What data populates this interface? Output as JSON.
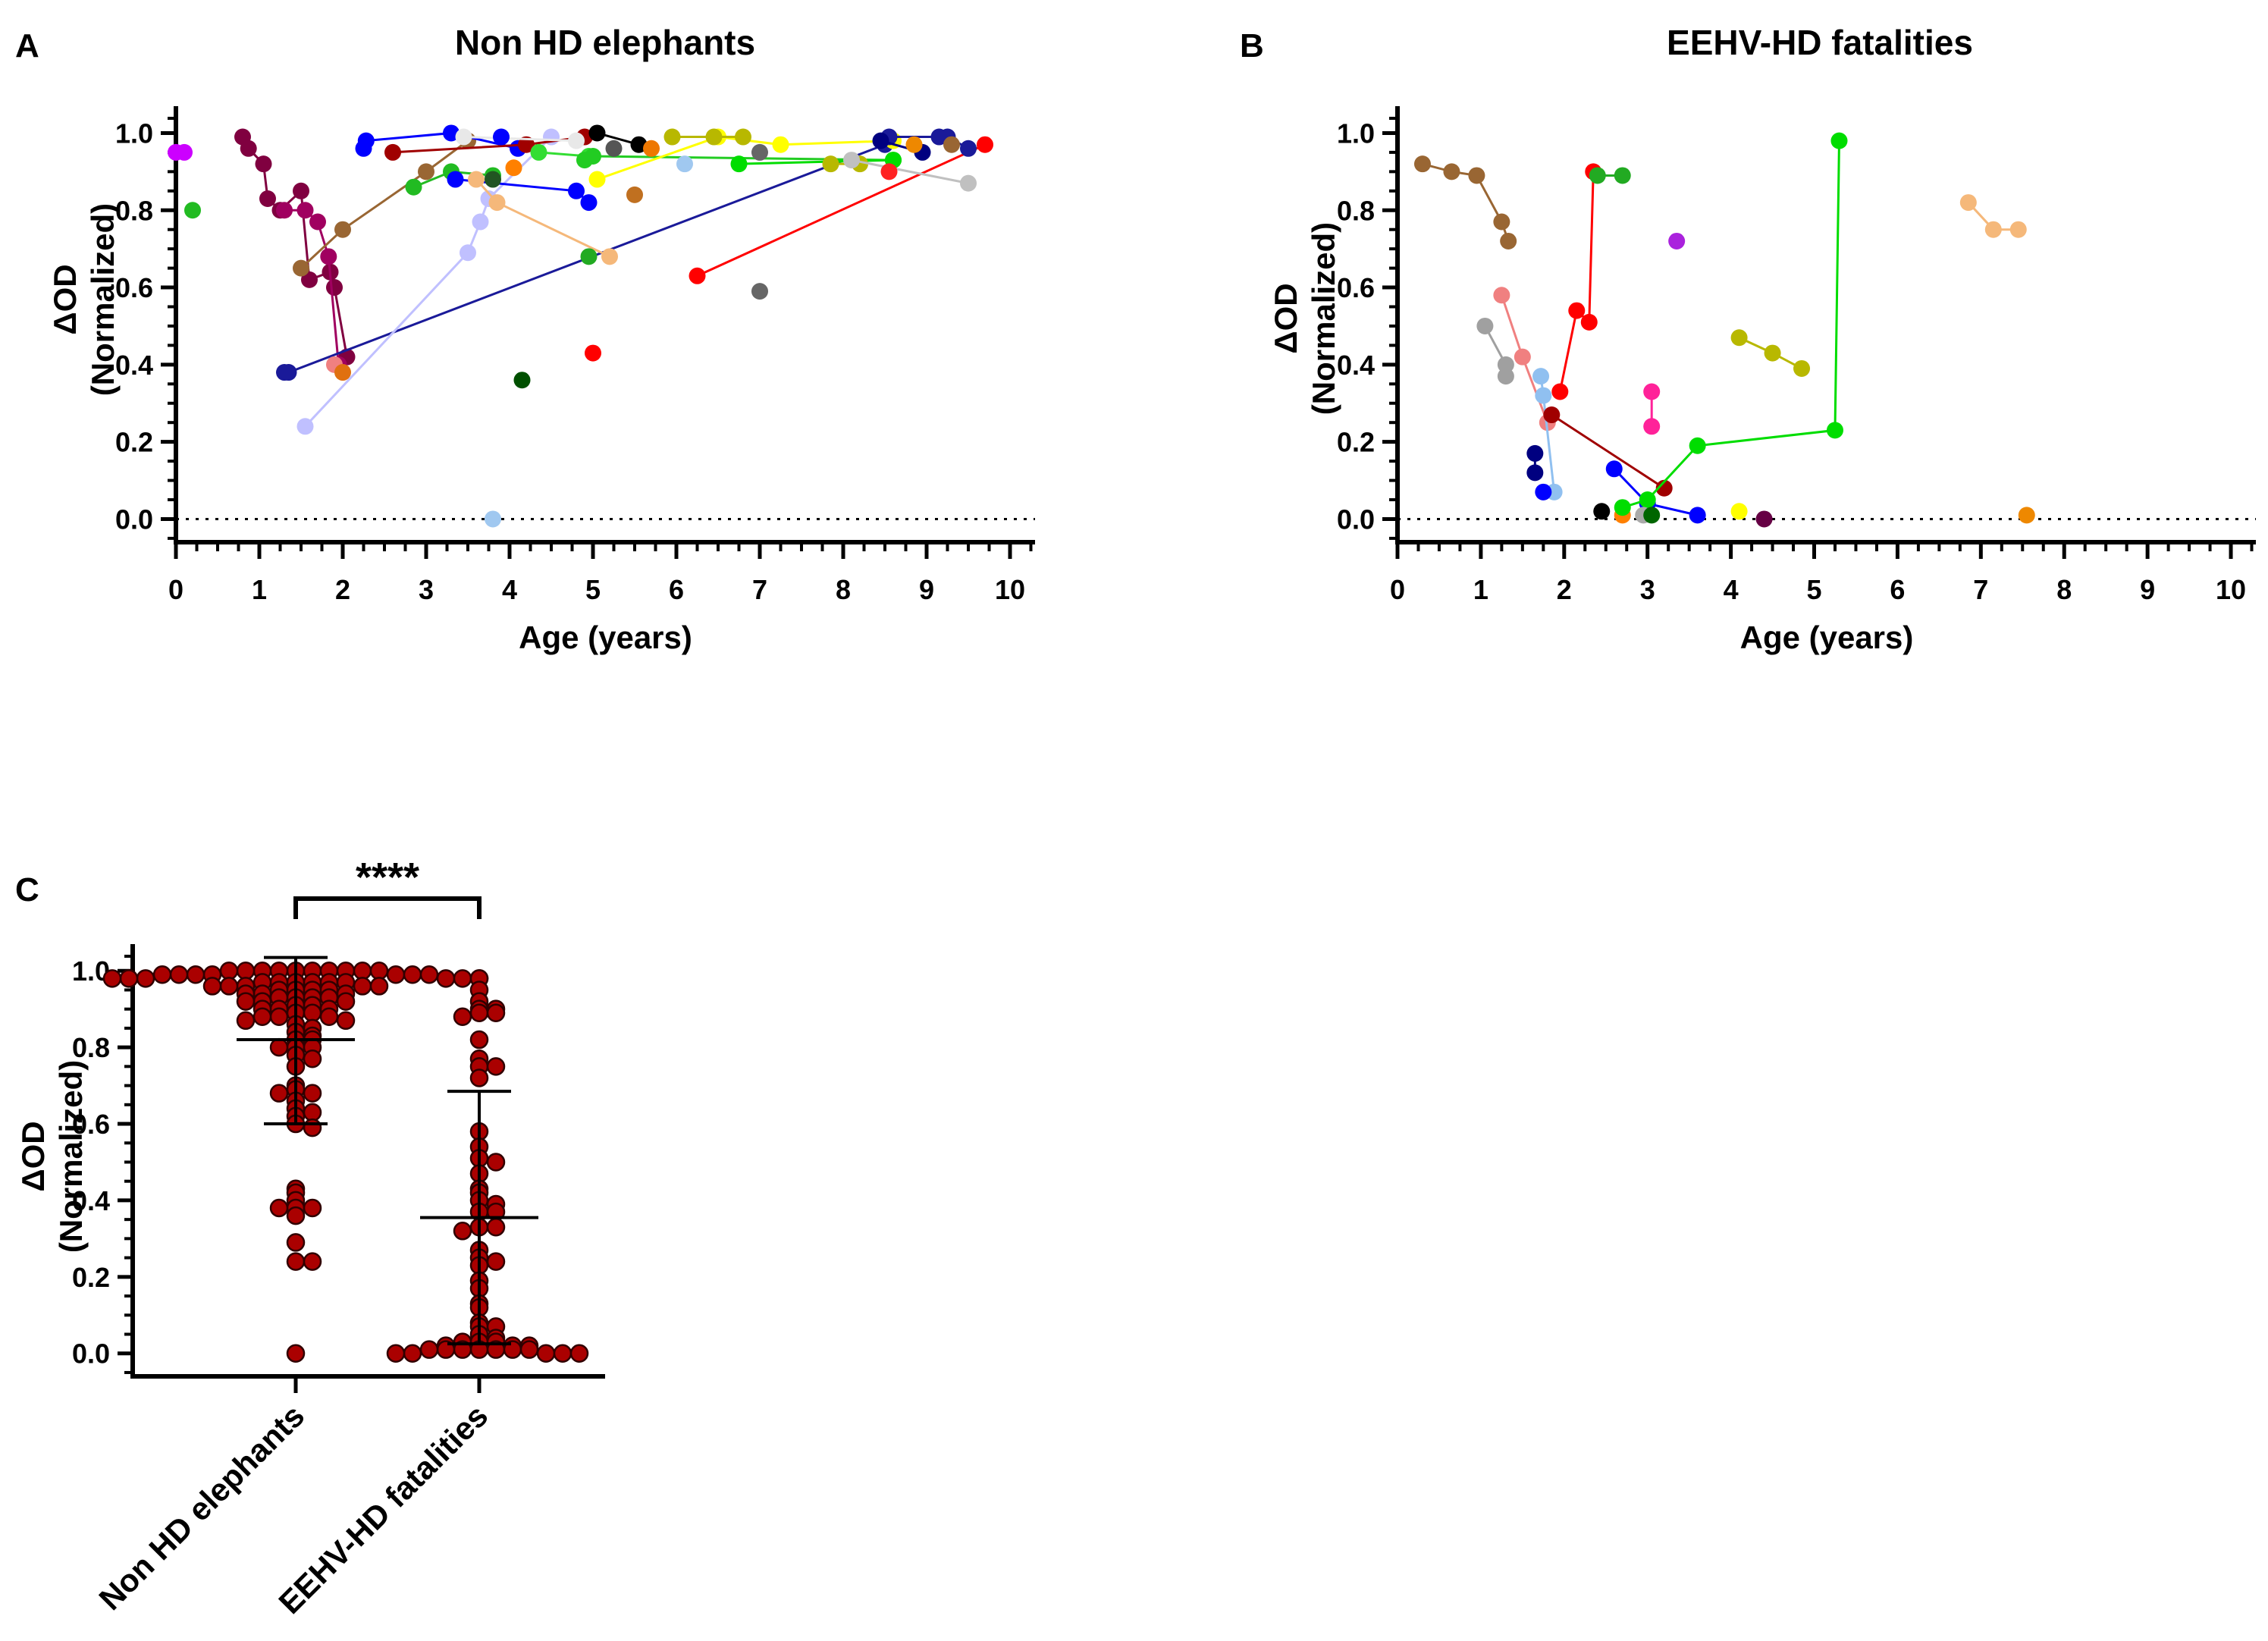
{
  "chart_data": [
    {
      "panel": "A",
      "type": "scatter",
      "title": "Non HD elephants",
      "xlabel": "Age (years)",
      "ylabel_line1": "ΔOD",
      "ylabel_line2": "(Normalized)",
      "xlim": [
        0,
        10.3
      ],
      "ylim": [
        -0.06,
        1.05
      ],
      "xticks": [
        0,
        1,
        2,
        3,
        4,
        5,
        6,
        7,
        8,
        9,
        10
      ],
      "xtick_labels": [
        "0",
        "1",
        "2",
        "3",
        "4",
        "5",
        "6",
        "7",
        "8",
        "9",
        "10"
      ],
      "yticks": [
        0.0,
        0.2,
        0.4,
        0.6,
        0.8,
        1.0
      ],
      "ytick_labels": [
        "0.0",
        "0.2",
        "0.4",
        "0.6",
        "0.8",
        "1.0"
      ],
      "reference_line": 0,
      "series": [
        {
          "color": "#cc00ff",
          "x": [
            0.0,
            0.1
          ],
          "y": [
            0.95,
            0.95
          ],
          "connected": true
        },
        {
          "color": "#22bb22",
          "x": [
            0.2
          ],
          "y": [
            0.8
          ],
          "connected": false
        },
        {
          "color": "#800040",
          "x": [
            0.8,
            0.87,
            1.05,
            1.1,
            1.25,
            1.5,
            1.6,
            1.85,
            1.9,
            2.05
          ],
          "y": [
            0.99,
            0.96,
            0.92,
            0.83,
            0.8,
            0.85,
            0.62,
            0.64,
            0.6,
            0.42
          ],
          "connected": true
        },
        {
          "color": "#a00060",
          "x": [
            1.3,
            1.55,
            1.7,
            1.83,
            1.95
          ],
          "y": [
            0.8,
            0.8,
            0.77,
            0.68,
            0.4
          ],
          "connected": true
        },
        {
          "color": "#996633",
          "x": [
            1.5,
            2.0,
            3.0,
            3.5
          ],
          "y": [
            0.65,
            0.75,
            0.9,
            0.98
          ],
          "connected": true
        },
        {
          "color": "#1a1a99",
          "x": [
            1.3,
            1.35,
            8.5
          ],
          "y": [
            0.38,
            0.38,
            0.97
          ],
          "connected": true
        },
        {
          "color": "#c0c0ff",
          "x": [
            1.55,
            3.5,
            3.65,
            3.75,
            4.5
          ],
          "y": [
            0.24,
            0.69,
            0.77,
            0.83,
            0.99
          ],
          "connected": true
        },
        {
          "color": "#f08080",
          "x": [
            1.9
          ],
          "y": [
            0.4
          ],
          "connected": false
        },
        {
          "color": "#e07010",
          "x": [
            2.0
          ],
          "y": [
            0.38
          ],
          "connected": false
        },
        {
          "color": "#0000ff",
          "x": [
            2.25,
            2.28,
            3.3,
            4.1
          ],
          "y": [
            0.96,
            0.98,
            1.0,
            0.96
          ],
          "connected": true
        },
        {
          "color": "#a00000",
          "x": [
            2.6,
            4.2,
            4.9
          ],
          "y": [
            0.95,
            0.97,
            0.99
          ],
          "connected": true
        },
        {
          "color": "#22bb22",
          "x": [
            2.85,
            3.3,
            3.8
          ],
          "y": [
            0.86,
            0.9,
            0.89
          ],
          "connected": true
        },
        {
          "color": "#0000ff",
          "x": [
            3.35,
            4.8,
            4.95
          ],
          "y": [
            0.88,
            0.85,
            0.82
          ],
          "connected": true
        },
        {
          "color": "#e8e8e8",
          "x": [
            3.45,
            4.8
          ],
          "y": [
            0.99,
            0.98
          ],
          "connected": true
        },
        {
          "color": "#f5b87a",
          "x": [
            3.6,
            3.85,
            5.2
          ],
          "y": [
            0.88,
            0.82,
            0.68
          ],
          "connected": true
        },
        {
          "color": "#225522",
          "x": [
            3.8
          ],
          "y": [
            0.88
          ],
          "connected": false
        },
        {
          "color": "#0000ff",
          "x": [
            3.9
          ],
          "y": [
            0.99
          ],
          "connected": false
        },
        {
          "color": "#ff8000",
          "x": [
            4.05
          ],
          "y": [
            0.91
          ],
          "connected": false
        },
        {
          "color": "#005000",
          "x": [
            4.15
          ],
          "y": [
            0.36
          ],
          "connected": false
        },
        {
          "color": "#33dd33",
          "x": [
            4.35,
            4.95
          ],
          "y": [
            0.95,
            0.94
          ],
          "connected": true
        },
        {
          "color": "#000000",
          "x": [
            5.05,
            5.55
          ],
          "y": [
            1.0,
            0.97
          ],
          "connected": true
        },
        {
          "color": "#22cc22",
          "x": [
            4.9,
            5.0,
            8.6
          ],
          "y": [
            0.93,
            0.94,
            0.93
          ],
          "connected": true
        },
        {
          "color": "#22aa22",
          "x": [
            4.95
          ],
          "y": [
            0.68
          ],
          "connected": false
        },
        {
          "color": "#ff0000",
          "x": [
            5.0
          ],
          "y": [
            0.43
          ],
          "connected": false
        },
        {
          "color": "#ffff00",
          "x": [
            5.05,
            6.5,
            7.25,
            8.6
          ],
          "y": [
            0.88,
            0.99,
            0.97,
            0.98
          ],
          "connected": true
        },
        {
          "color": "#555555",
          "x": [
            5.25
          ],
          "y": [
            0.96
          ],
          "connected": false
        },
        {
          "color": "#c07020",
          "x": [
            5.5
          ],
          "y": [
            0.84
          ],
          "connected": false
        },
        {
          "color": "#ee7700",
          "x": [
            5.7
          ],
          "y": [
            0.96
          ],
          "connected": false
        },
        {
          "color": "#b8b800",
          "x": [
            5.95,
            6.45,
            6.8
          ],
          "y": [
            0.99,
            0.99,
            0.99
          ],
          "connected": true
        },
        {
          "color": "#a0c8f0",
          "x": [
            6.1
          ],
          "y": [
            0.92
          ],
          "connected": false
        },
        {
          "color": "#00dd00",
          "x": [
            6.75,
            8.6
          ],
          "y": [
            0.92,
            0.93
          ],
          "connected": true
        },
        {
          "color": "#666666",
          "x": [
            7.0
          ],
          "y": [
            0.95
          ],
          "connected": false
        },
        {
          "color": "#666666",
          "x": [
            7.0
          ],
          "y": [
            0.59
          ],
          "connected": false
        },
        {
          "color": "#ff0000",
          "x": [
            6.25,
            9.7
          ],
          "y": [
            0.63,
            0.97
          ],
          "connected": true
        },
        {
          "color": "#b8b800",
          "x": [
            7.85,
            8.2
          ],
          "y": [
            0.92,
            0.92
          ],
          "connected": true
        },
        {
          "color": "#c0c0c0",
          "x": [
            8.1,
            9.5
          ],
          "y": [
            0.93,
            0.87
          ],
          "connected": true
        },
        {
          "color": "#1a1a99",
          "x": [
            8.55,
            9.15,
            9.25,
            9.5
          ],
          "y": [
            0.99,
            0.99,
            0.99,
            0.96
          ],
          "connected": true
        },
        {
          "color": "#000080",
          "x": [
            8.45,
            8.95
          ],
          "y": [
            0.98,
            0.95
          ],
          "connected": true
        },
        {
          "color": "#ff2222",
          "x": [
            8.55
          ],
          "y": [
            0.9
          ],
          "connected": false
        },
        {
          "color": "#ee8800",
          "x": [
            8.85
          ],
          "y": [
            0.97
          ],
          "connected": false
        },
        {
          "color": "#996633",
          "x": [
            9.3
          ],
          "y": [
            0.97
          ],
          "connected": false
        },
        {
          "color": "#a0c8f0",
          "x": [
            3.8
          ],
          "y": [
            0.0
          ],
          "connected": false
        }
      ]
    },
    {
      "panel": "B",
      "type": "scatter",
      "title": "EEHV-HD fatalities",
      "xlabel": "Age (years)",
      "ylabel_line1": "ΔOD",
      "ylabel_line2": "(Normalized)",
      "xlim": [
        0,
        10.3
      ],
      "ylim": [
        -0.06,
        1.05
      ],
      "xticks": [
        0,
        1,
        2,
        3,
        4,
        5,
        6,
        7,
        8,
        9,
        10
      ],
      "xtick_labels": [
        "0",
        "1",
        "2",
        "3",
        "4",
        "5",
        "6",
        "7",
        "8",
        "9",
        "10"
      ],
      "yticks": [
        0.0,
        0.2,
        0.4,
        0.6,
        0.8,
        1.0
      ],
      "ytick_labels": [
        "0.0",
        "0.2",
        "0.4",
        "0.6",
        "0.8",
        "1.0"
      ],
      "reference_line": 0,
      "series": [
        {
          "color": "#996633",
          "x": [
            0.3,
            0.65,
            0.95,
            1.25,
            1.33
          ],
          "y": [
            0.92,
            0.9,
            0.89,
            0.77,
            0.72
          ],
          "connected": true
        },
        {
          "color": "#a0a0a0",
          "x": [
            1.05,
            1.3,
            1.3
          ],
          "y": [
            0.5,
            0.4,
            0.37
          ],
          "connected": true
        },
        {
          "color": "#f08080",
          "x": [
            1.25,
            1.5,
            1.8
          ],
          "y": [
            0.58,
            0.42,
            0.25
          ],
          "connected": true
        },
        {
          "color": "#90c0f0",
          "x": [
            1.72,
            1.75,
            1.88
          ],
          "y": [
            0.37,
            0.32,
            0.07
          ],
          "connected": true
        },
        {
          "color": "#000080",
          "x": [
            1.65,
            1.65
          ],
          "y": [
            0.17,
            0.12
          ],
          "connected": true
        },
        {
          "color": "#0000ff",
          "x": [
            1.75
          ],
          "y": [
            0.07
          ],
          "connected": false
        },
        {
          "color": "#ff0000",
          "x": [
            1.95,
            2.15,
            2.3,
            2.35
          ],
          "y": [
            0.33,
            0.54,
            0.51,
            0.9
          ],
          "connected": true
        },
        {
          "color": "#22aa22",
          "x": [
            2.4,
            2.7
          ],
          "y": [
            0.89,
            0.89
          ],
          "connected": true
        },
        {
          "color": "#a00000",
          "x": [
            1.85,
            3.2
          ],
          "y": [
            0.27,
            0.08
          ],
          "connected": true
        },
        {
          "color": "#000000",
          "x": [
            2.45
          ],
          "y": [
            0.02
          ],
          "connected": false
        },
        {
          "color": "#ff8000",
          "x": [
            2.7
          ],
          "y": [
            0.01
          ],
          "connected": false
        },
        {
          "color": "#0000ff",
          "x": [
            2.6,
            3.0,
            3.6
          ],
          "y": [
            0.13,
            0.04,
            0.01
          ],
          "connected": true
        },
        {
          "color": "#00dd00",
          "x": [
            2.7,
            3.0,
            3.6,
            5.25,
            5.3
          ],
          "y": [
            0.03,
            0.05,
            0.19,
            0.23,
            0.98
          ],
          "connected": true
        },
        {
          "color": "#aaaaaa",
          "x": [
            2.95
          ],
          "y": [
            0.01
          ],
          "connected": false
        },
        {
          "color": "#006600",
          "x": [
            3.05
          ],
          "y": [
            0.01
          ],
          "connected": false
        },
        {
          "color": "#ff2299",
          "x": [
            3.05,
            3.05
          ],
          "y": [
            0.33,
            0.24
          ],
          "connected": true
        },
        {
          "color": "#aa22dd",
          "x": [
            3.35
          ],
          "y": [
            0.72
          ],
          "connected": false
        },
        {
          "color": "#ffff00",
          "x": [
            4.1
          ],
          "y": [
            0.02
          ],
          "connected": false
        },
        {
          "color": "#660044",
          "x": [
            4.4
          ],
          "y": [
            0.0
          ],
          "connected": false
        },
        {
          "color": "#b8b800",
          "x": [
            4.1,
            4.5,
            4.85
          ],
          "y": [
            0.47,
            0.43,
            0.39
          ],
          "connected": true
        },
        {
          "color": "#f5b87a",
          "x": [
            6.85,
            7.15,
            7.45
          ],
          "y": [
            0.82,
            0.75,
            0.75
          ],
          "connected": true
        },
        {
          "color": "#ee8800",
          "x": [
            7.55
          ],
          "y": [
            0.01
          ],
          "connected": false
        }
      ]
    },
    {
      "panel": "C",
      "type": "scatter",
      "subtype": "dot-plot",
      "categories": [
        "Non HD elephants",
        "EEHV-HD fatalities"
      ],
      "ylabel_line1": "ΔOD",
      "ylabel_line2": "(Normalized)",
      "ylim": [
        -0.06,
        1.05
      ],
      "yticks": [
        0.0,
        0.2,
        0.4,
        0.6,
        0.8,
        1.0
      ],
      "ytick_labels": [
        "0.0",
        "0.2",
        "0.4",
        "0.6",
        "0.8",
        "1.0"
      ],
      "significance": "****",
      "point_color": "#aa0000",
      "groups": [
        {
          "name": "Non HD elephants",
          "mean": 0.82,
          "sd_upper": 1.035,
          "sd_lower": 0.6,
          "values": [
            1.0,
            1.0,
            1.0,
            1.0,
            1.0,
            1.0,
            1.0,
            1.0,
            1.0,
            1.0,
            0.99,
            0.99,
            0.99,
            0.99,
            0.99,
            0.99,
            0.99,
            0.98,
            0.98,
            0.98,
            0.98,
            0.98,
            0.98,
            0.97,
            0.97,
            0.97,
            0.97,
            0.97,
            0.97,
            0.96,
            0.96,
            0.96,
            0.96,
            0.96,
            0.95,
            0.95,
            0.95,
            0.95,
            0.94,
            0.94,
            0.94,
            0.93,
            0.93,
            0.93,
            0.93,
            0.92,
            0.92,
            0.92,
            0.91,
            0.91,
            0.9,
            0.9,
            0.9,
            0.89,
            0.89,
            0.88,
            0.88,
            0.88,
            0.87,
            0.87,
            0.86,
            0.85,
            0.84,
            0.83,
            0.82,
            0.82,
            0.8,
            0.8,
            0.8,
            0.78,
            0.77,
            0.75,
            0.7,
            0.69,
            0.68,
            0.68,
            0.66,
            0.64,
            0.63,
            0.62,
            0.6,
            0.59,
            0.43,
            0.42,
            0.4,
            0.38,
            0.38,
            0.38,
            0.36,
            0.29,
            0.24,
            0.24,
            0.0
          ]
        },
        {
          "name": "EEHV-HD fatalities",
          "mean": 0.355,
          "sd_upper": 0.685,
          "sd_lower": 0.025,
          "values": [
            0.98,
            0.95,
            0.92,
            0.9,
            0.9,
            0.89,
            0.89,
            0.88,
            0.82,
            0.77,
            0.75,
            0.75,
            0.72,
            0.58,
            0.54,
            0.51,
            0.5,
            0.47,
            0.43,
            0.42,
            0.4,
            0.39,
            0.37,
            0.37,
            0.33,
            0.33,
            0.32,
            0.27,
            0.25,
            0.24,
            0.23,
            0.19,
            0.17,
            0.13,
            0.12,
            0.08,
            0.07,
            0.07,
            0.05,
            0.04,
            0.03,
            0.03,
            0.03,
            0.02,
            0.02,
            0.02,
            0.01,
            0.01,
            0.01,
            0.01,
            0.01,
            0.01,
            0.01,
            0.0,
            0.0,
            0.0,
            0.0,
            0.0
          ]
        }
      ]
    }
  ]
}
